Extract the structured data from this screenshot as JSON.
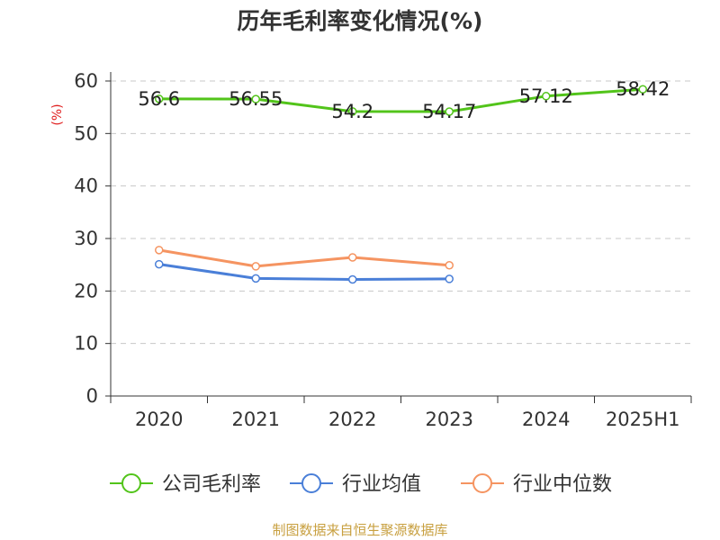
{
  "title": "历年毛利率变化情况(%)",
  "source_note": "制图数据来自恒生聚源数据库",
  "chart_data": {
    "type": "line",
    "title": "历年毛利率变化情况(%)",
    "ylabel": "(%)",
    "xlabel": "",
    "categories": [
      "2020",
      "2021",
      "2022",
      "2023",
      "2024",
      "2025H1"
    ],
    "ylim": [
      0,
      60
    ],
    "yticks": [
      0,
      10,
      20,
      30,
      40,
      50,
      60
    ],
    "grid": true,
    "legend_position": "bottom",
    "series": [
      {
        "name": "公司毛利率",
        "color": "#52c41a",
        "values": [
          56.6,
          56.55,
          54.2,
          54.17,
          57.12,
          58.42
        ],
        "labels": [
          "56.6",
          "56.55",
          "54.2",
          "54.17",
          "57.12",
          "58.42"
        ]
      },
      {
        "name": "行业均值",
        "color": "#4a7fd8",
        "values": [
          25.1,
          22.4,
          22.2,
          22.3,
          null,
          null
        ]
      },
      {
        "name": "行业中位数",
        "color": "#f59461",
        "values": [
          27.8,
          24.7,
          26.4,
          24.9,
          null,
          null
        ]
      }
    ]
  }
}
